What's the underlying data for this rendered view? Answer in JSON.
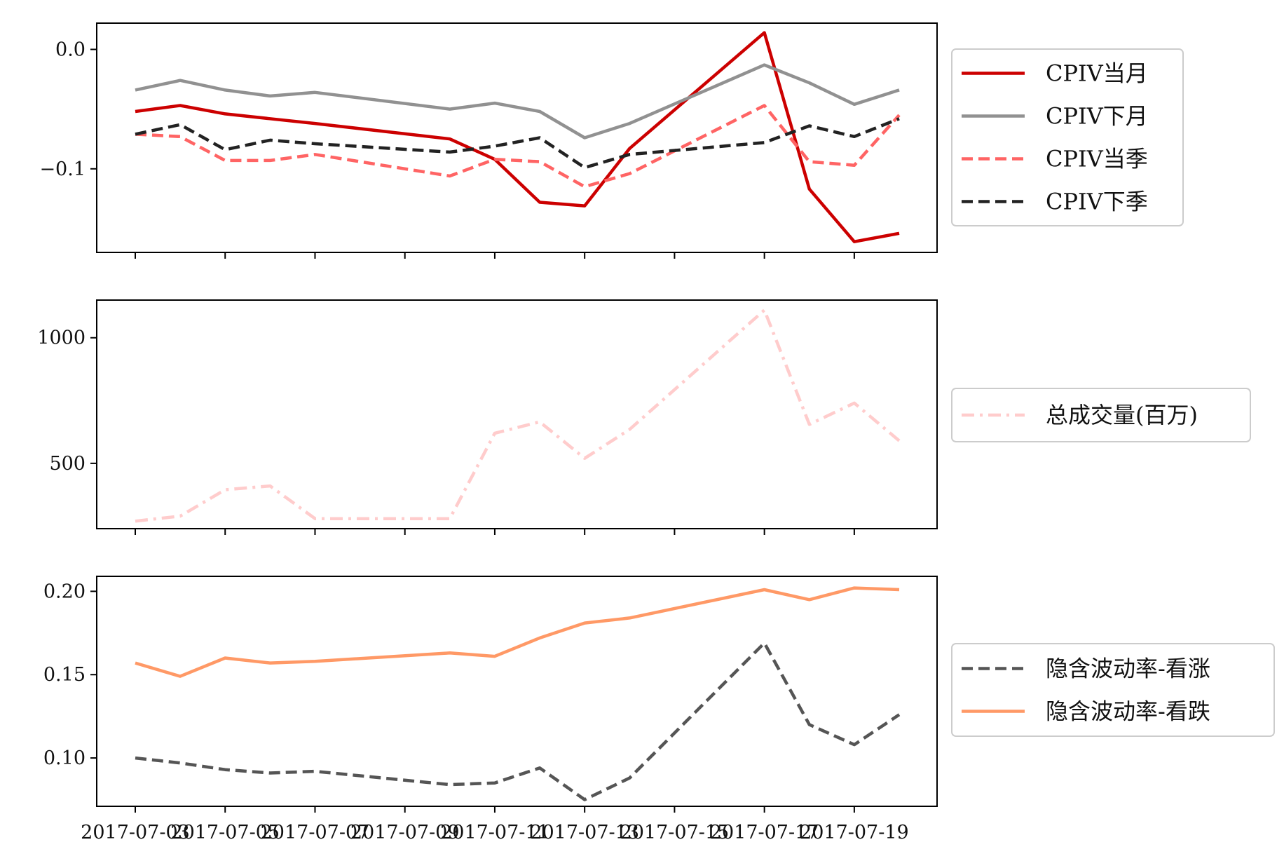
{
  "chart_data": [
    {
      "type": "line",
      "x": [
        "2017-07-03",
        "2017-07-04",
        "2017-07-05",
        "2017-07-06",
        "2017-07-07",
        "2017-07-10",
        "2017-07-11",
        "2017-07-12",
        "2017-07-13",
        "2017-07-14",
        "2017-07-17",
        "2017-07-18",
        "2017-07-19",
        "2017-07-20"
      ],
      "ylim": [
        -0.17,
        0.022
      ],
      "yticks": [
        {
          "value": 0.0,
          "label": "0.0"
        },
        {
          "value": -0.1,
          "label": "−0.1"
        }
      ],
      "legend": "right",
      "series": [
        {
          "name": "CPIV当月",
          "color": "#cc0000",
          "style": "solid",
          "values": [
            -0.052,
            -0.047,
            -0.054,
            -0.058,
            -0.062,
            -0.075,
            -0.092,
            -0.128,
            -0.131,
            -0.083,
            0.014,
            -0.117,
            -0.161,
            -0.154
          ]
        },
        {
          "name": "CPIV下月",
          "color": "#919191",
          "style": "solid",
          "values": [
            -0.034,
            -0.026,
            -0.034,
            -0.039,
            -0.036,
            -0.05,
            -0.045,
            -0.052,
            -0.074,
            -0.062,
            -0.013,
            -0.028,
            -0.046,
            -0.034
          ]
        },
        {
          "name": "CPIV当季",
          "color": "#ff6464",
          "style": "dashed",
          "values": [
            -0.071,
            -0.073,
            -0.093,
            -0.093,
            -0.088,
            -0.106,
            -0.092,
            -0.094,
            -0.115,
            -0.104,
            -0.047,
            -0.094,
            -0.097,
            -0.055
          ]
        },
        {
          "name": "CPIV下季",
          "color": "#222222",
          "style": "dashed",
          "values": [
            -0.071,
            -0.063,
            -0.084,
            -0.076,
            -0.079,
            -0.086,
            -0.081,
            -0.074,
            -0.099,
            -0.088,
            -0.078,
            -0.064,
            -0.073,
            -0.058
          ]
        }
      ]
    },
    {
      "type": "line",
      "x": [
        "2017-07-03",
        "2017-07-04",
        "2017-07-05",
        "2017-07-06",
        "2017-07-07",
        "2017-07-10",
        "2017-07-11",
        "2017-07-12",
        "2017-07-13",
        "2017-07-14",
        "2017-07-17",
        "2017-07-18",
        "2017-07-19",
        "2017-07-20"
      ],
      "ylim": [
        240,
        1150
      ],
      "yticks": [
        {
          "value": 1000,
          "label": "1000"
        },
        {
          "value": 500,
          "label": "500"
        }
      ],
      "legend": "right",
      "series": [
        {
          "name": "总成交量(百万)",
          "color": "#ffcccc",
          "style": "dashdot",
          "values": [
            270,
            290,
            395,
            410,
            280,
            280,
            620,
            665,
            520,
            635,
            1110,
            655,
            740,
            590
          ]
        }
      ]
    },
    {
      "type": "line",
      "x": [
        "2017-07-03",
        "2017-07-04",
        "2017-07-05",
        "2017-07-06",
        "2017-07-07",
        "2017-07-10",
        "2017-07-11",
        "2017-07-12",
        "2017-07-13",
        "2017-07-14",
        "2017-07-17",
        "2017-07-18",
        "2017-07-19",
        "2017-07-20"
      ],
      "ylim": [
        0.071,
        0.209
      ],
      "yticks": [
        {
          "value": 0.2,
          "label": "0.20"
        },
        {
          "value": 0.15,
          "label": "0.15"
        },
        {
          "value": 0.1,
          "label": "0.10"
        }
      ],
      "legend": "right",
      "series": [
        {
          "name": "隐含波动率-看涨",
          "color": "#555555",
          "style": "dashed",
          "values": [
            0.1,
            0.097,
            0.093,
            0.091,
            0.092,
            0.084,
            0.085,
            0.094,
            0.075,
            0.088,
            0.169,
            0.12,
            0.108,
            0.126
          ]
        },
        {
          "name": "隐含波动率-看跌",
          "color": "#ff9966",
          "style": "solid",
          "values": [
            0.157,
            0.149,
            0.16,
            0.157,
            0.158,
            0.163,
            0.161,
            0.172,
            0.181,
            0.184,
            0.201,
            0.195,
            0.202,
            0.201
          ]
        }
      ]
    }
  ],
  "x_axis": {
    "ticks": [
      {
        "index": 0,
        "label": "2017-07-03"
      },
      {
        "index": 2,
        "label": "2017-07-05"
      },
      {
        "index": 4,
        "label": "2017-07-07"
      },
      {
        "index": 5,
        "label": "2017-07-09"
      },
      {
        "index": 6,
        "label": "2017-07-11"
      },
      {
        "index": 8,
        "label": "2017-07-13"
      },
      {
        "index": 9,
        "label": "2017-07-15"
      },
      {
        "index": 10,
        "label": "2017-07-17"
      },
      {
        "index": 12,
        "label": "2017-07-19"
      }
    ]
  }
}
